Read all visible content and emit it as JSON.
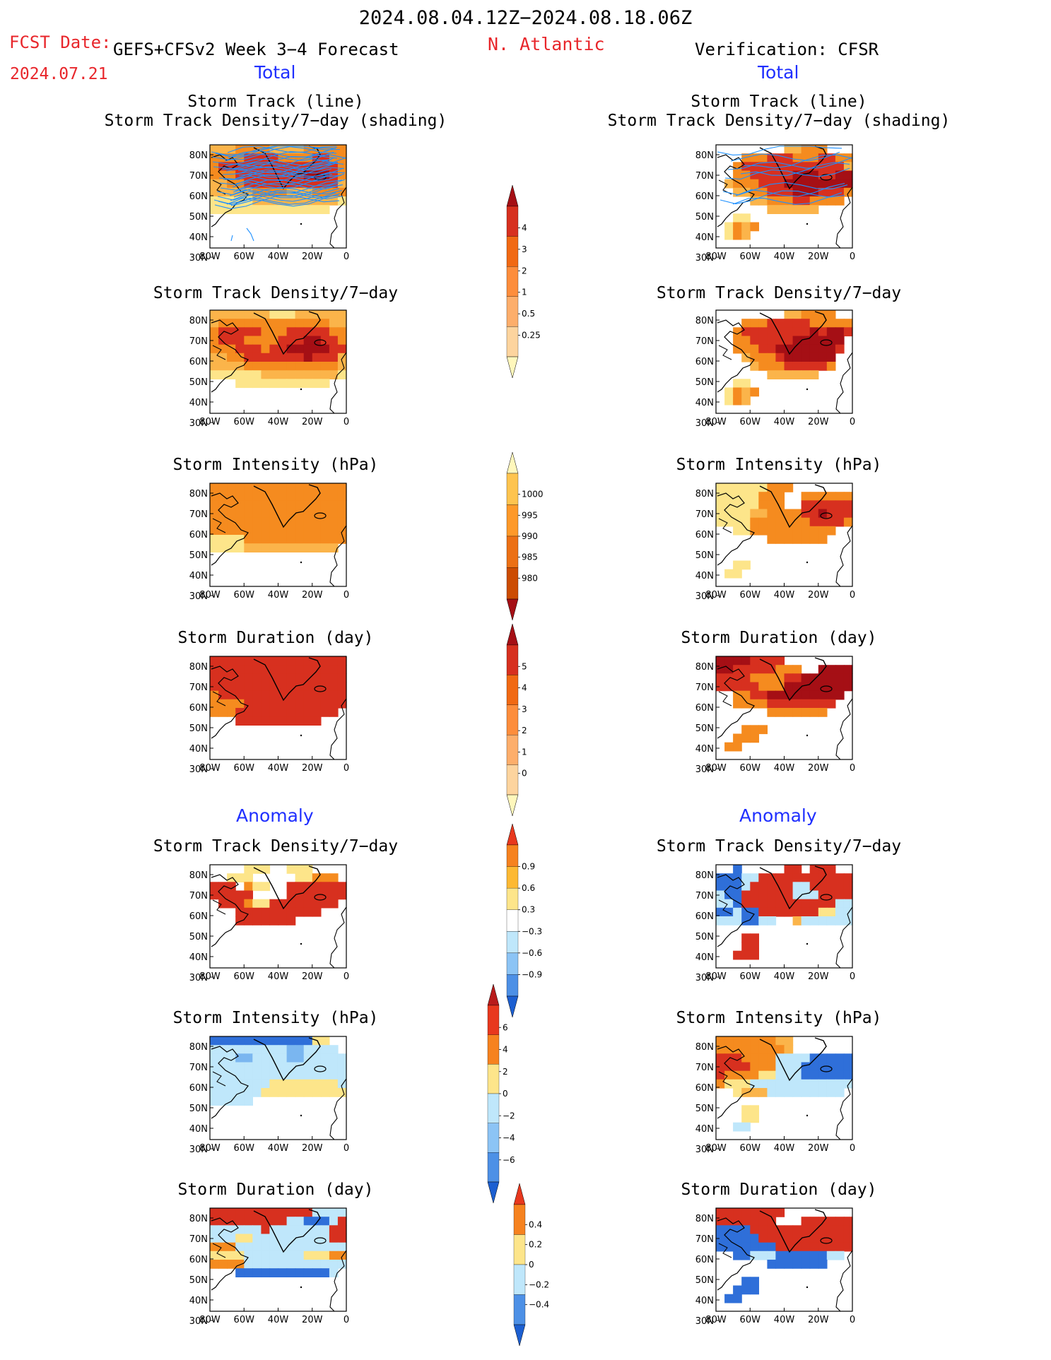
{
  "header": {
    "date_range": "2024.08.04.12Z−2024.08.18.06Z",
    "fcst_label": "FCST Date:",
    "forecast_name": "GEFS+CFSv2 Week 3−4 Forecast",
    "fcst_date": "2024.07.21",
    "region": "N. Atlantic",
    "verification": "Verification: CFSR"
  },
  "section_labels": {
    "total": "Total",
    "anomaly": "Anomaly"
  },
  "panel_titles": {
    "track_line": "Storm Track (line)",
    "track_shading": "Storm Track Density/7−day (shading)",
    "density": "Storm Track Density/7−day",
    "intensity": "Storm Intensity (hPa)",
    "duration": "Storm Duration (day)"
  },
  "map_axes": {
    "lat_labels": [
      "80N",
      "70N",
      "60N",
      "50N",
      "40N",
      "30N"
    ],
    "lon_labels": [
      "80W",
      "60W",
      "40W",
      "20W",
      "0"
    ]
  },
  "colorbars": {
    "density_total": {
      "labels": [
        "4",
        "3",
        "2",
        "1",
        "0.5",
        "0.25"
      ],
      "colors": [
        "#a50f15",
        "#d7301f",
        "#f16913",
        "#fd8d3c",
        "#fdae6b",
        "#fdd49e",
        "#fff7bc"
      ]
    },
    "intensity_total": {
      "labels": [
        "1000",
        "995",
        "990",
        "985",
        "980"
      ],
      "colors": [
        "#fff7bc",
        "#fec44f",
        "#fe9929",
        "#ec7014",
        "#cc4c02",
        "#a50f15"
      ]
    },
    "duration_total": {
      "labels": [
        "5",
        "4",
        "3",
        "2",
        "1",
        "0"
      ],
      "colors": [
        "#a50f15",
        "#d7301f",
        "#f16913",
        "#fd8d3c",
        "#fdae6b",
        "#fdd49e",
        "#fff7bc"
      ]
    },
    "density_anom": {
      "labels": [
        "0.9",
        "0.6",
        "0.3",
        "−0.3",
        "−0.6",
        "−0.9"
      ],
      "colors": [
        "#e8381e",
        "#f6821f",
        "#fdb933",
        "#fde58a",
        "#ffffff",
        "#bfe7fb",
        "#8cc4f5",
        "#4d90e6",
        "#1c5fd1"
      ]
    },
    "intensity_anom": {
      "labels": [
        "6",
        "4",
        "2",
        "0",
        "−2",
        "−4",
        "−6"
      ],
      "colors": [
        "#b81b1b",
        "#e8381e",
        "#f6821f",
        "#fde58a",
        "#bfe7fb",
        "#8cc4f5",
        "#4d90e6",
        "#1c5fd1"
      ]
    },
    "duration_anom": {
      "labels": [
        "0.4",
        "0.2",
        "0",
        "−0.2",
        "−0.4"
      ],
      "colors": [
        "#e8381e",
        "#f6821f",
        "#fde58a",
        "#bfe7fb",
        "#4d90e6",
        "#1c5fd1"
      ]
    }
  },
  "colors": {
    "header_red": "#e8262b",
    "label_blue": "#1f2fff",
    "track_line": "#1e90ff",
    "dark_red": "#a50f15",
    "red": "#d7301f",
    "orange": "#f58b1f",
    "light_orange": "#fbb44a",
    "yellow": "#fde58a",
    "light_blue": "#bfe7fb",
    "mid_blue": "#7ab6f0",
    "blue": "#2f6fd9"
  }
}
